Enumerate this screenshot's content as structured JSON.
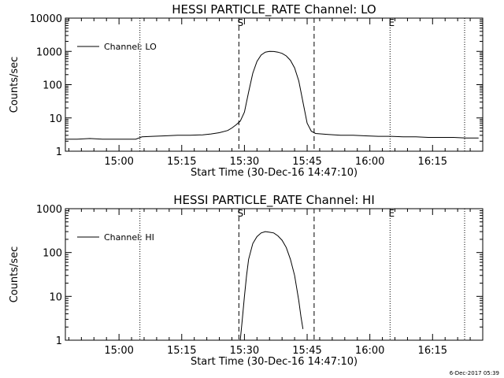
{
  "footer": {
    "timestamp": "6-Dec-2017 05:39"
  },
  "chart_data": [
    {
      "type": "line",
      "title": "HESSI PARTICLE_RATE Channel: LO",
      "xlabel": "Start Time (30-Dec-16 14:47:10)",
      "ylabel": "Counts/sec",
      "yscale": "log",
      "xlim": [
        "14:47:10",
        "16:27:00"
      ],
      "ylim": [
        1,
        10000
      ],
      "xticks": [
        "15:00",
        "15:15",
        "15:30",
        "15:45",
        "16:00",
        "16:15"
      ],
      "yticks": [
        {
          "value": 1,
          "label": "1"
        },
        {
          "value": 10,
          "label": "10"
        },
        {
          "value": 100,
          "label": "100"
        },
        {
          "value": 1000,
          "label": "1000"
        },
        {
          "value": 10000,
          "label": "10000"
        }
      ],
      "legend": {
        "entry": "Channel: LO",
        "placement": "top-left"
      },
      "grid": false,
      "markers": [
        {
          "time": "15:05:00",
          "style": "dotted",
          "label": ""
        },
        {
          "time": "15:28:40",
          "style": "dashed",
          "label": "S"
        },
        {
          "time": "15:46:40",
          "style": "dashed",
          "label": ""
        },
        {
          "time": "16:04:50",
          "style": "dotted",
          "label": "E"
        },
        {
          "time": "16:22:40",
          "style": "dotted",
          "label": ""
        }
      ],
      "series": [
        {
          "name": "Channel: LO",
          "x": [
            "14:47:10",
            "14:50:00",
            "14:53:00",
            "14:56:00",
            "14:59:00",
            "15:02:00",
            "15:04:00",
            "15:05:30",
            "15:08:00",
            "15:11:00",
            "15:14:00",
            "15:17:00",
            "15:20:00",
            "15:22:00",
            "15:24:00",
            "15:26:00",
            "15:27:00",
            "15:28:00",
            "15:29:00",
            "15:30:00",
            "15:31:00",
            "15:32:00",
            "15:33:00",
            "15:34:00",
            "15:35:00",
            "15:36:00",
            "15:37:00",
            "15:38:00",
            "15:39:00",
            "15:40:00",
            "15:41:00",
            "15:42:00",
            "15:43:00",
            "15:44:00",
            "15:45:00",
            "15:46:00",
            "15:47:00",
            "15:50:00",
            "15:53:00",
            "15:56:00",
            "15:59:00",
            "16:02:00",
            "16:05:00",
            "16:08:00",
            "16:11:00",
            "16:14:00",
            "16:17:00",
            "16:20:00",
            "16:23:00",
            "16:26:00"
          ],
          "y": [
            2.3,
            2.3,
            2.4,
            2.3,
            2.3,
            2.3,
            2.3,
            2.7,
            2.8,
            2.9,
            3,
            3,
            3.1,
            3.3,
            3.6,
            4.2,
            5,
            6.2,
            8,
            15,
            60,
            220,
            500,
            780,
            950,
            1000,
            990,
            950,
            870,
            730,
            540,
            320,
            130,
            30,
            7,
            4,
            3.4,
            3.2,
            3,
            3,
            2.9,
            2.8,
            2.8,
            2.7,
            2.7,
            2.6,
            2.6,
            2.6,
            2.5,
            2.5
          ]
        }
      ]
    },
    {
      "type": "line",
      "title": "HESSI PARTICLE_RATE Channel: HI",
      "xlabel": "Start Time (30-Dec-16 14:47:10)",
      "ylabel": "Counts/sec",
      "yscale": "log",
      "xlim": [
        "14:47:10",
        "16:27:00"
      ],
      "ylim": [
        1,
        1000
      ],
      "xticks": [
        "15:00",
        "15:15",
        "15:30",
        "15:45",
        "16:00",
        "16:15"
      ],
      "yticks": [
        {
          "value": 1,
          "label": "1"
        },
        {
          "value": 10,
          "label": "10"
        },
        {
          "value": 100,
          "label": "100"
        },
        {
          "value": 1000,
          "label": "1000"
        }
      ],
      "legend": {
        "entry": "Channel: HI",
        "placement": "top-left"
      },
      "grid": false,
      "markers": [
        {
          "time": "15:05:00",
          "style": "dotted",
          "label": ""
        },
        {
          "time": "15:28:40",
          "style": "dashed",
          "label": "S"
        },
        {
          "time": "15:46:40",
          "style": "dashed",
          "label": ""
        },
        {
          "time": "16:04:50",
          "style": "dotted",
          "label": "E"
        },
        {
          "time": "16:22:40",
          "style": "dotted",
          "label": ""
        }
      ],
      "series": [
        {
          "name": "Channel: HI",
          "x": [
            "15:29:00",
            "15:29:30",
            "15:30:00",
            "15:30:30",
            "15:31:00",
            "15:32:00",
            "15:33:00",
            "15:34:00",
            "15:35:00",
            "15:36:00",
            "15:37:00",
            "15:38:00",
            "15:39:00",
            "15:40:00",
            "15:41:00",
            "15:42:00",
            "15:43:00",
            "15:43:30",
            "15:44:00"
          ],
          "y": [
            1,
            3,
            10,
            30,
            70,
            160,
            230,
            280,
            300,
            290,
            280,
            240,
            190,
            130,
            70,
            30,
            8,
            3.5,
            1.8
          ]
        }
      ]
    }
  ]
}
